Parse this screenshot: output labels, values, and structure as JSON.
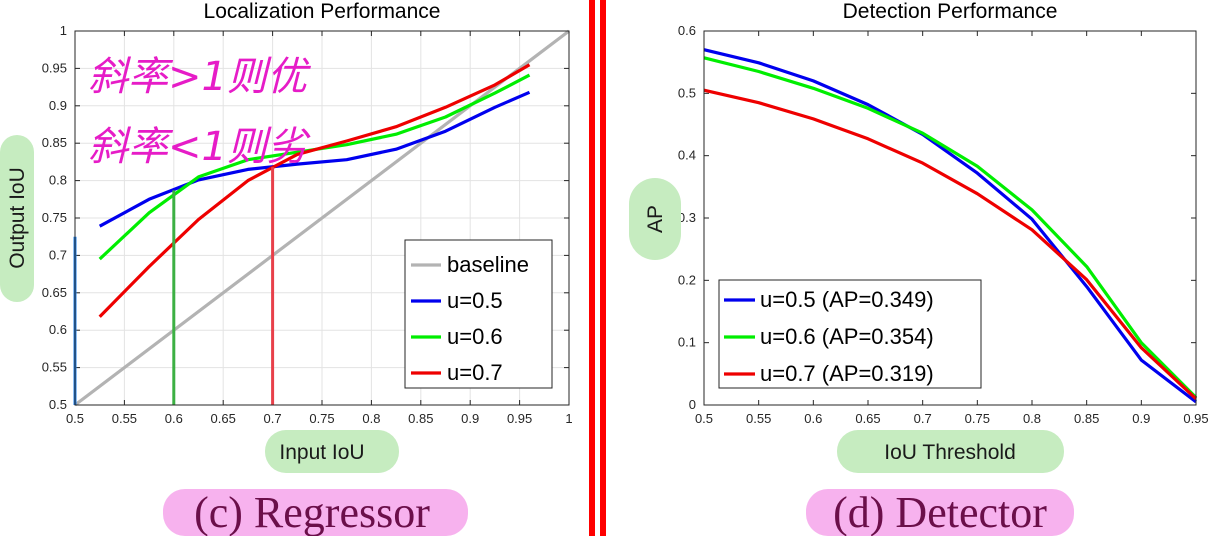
{
  "colors": {
    "baseline": "#b3b3b3",
    "u05": "#0000ee",
    "u06": "#00ee00",
    "u07": "#ee0000",
    "label_bg": "#c6ecc0",
    "caption_bg": "#f7b2ee",
    "divider": "#ff0000",
    "annotation": "#e61cc7",
    "marker_blue": "#1f7fe8",
    "marker_green": "#3cb043",
    "marker_red": "#e8404a"
  },
  "annotations": {
    "line1": "斜率>1则优",
    "line2": "斜率<1则劣"
  },
  "chart_data": [
    {
      "type": "line",
      "title": "Localization Performance",
      "caption": "(c) Regressor",
      "xlabel": "Input IoU",
      "ylabel": "Output IoU",
      "xlim": [
        0.5,
        1
      ],
      "ylim": [
        0.5,
        1
      ],
      "xticks": [
        "0.5",
        "0.55",
        "0.6",
        "0.65",
        "0.7",
        "0.75",
        "0.8",
        "0.85",
        "0.9",
        "0.95",
        "1"
      ],
      "yticks": [
        "0.5",
        "0.55",
        "0.6",
        "0.65",
        "0.7",
        "0.75",
        "0.8",
        "0.85",
        "0.9",
        "0.95",
        "1"
      ],
      "grid": true,
      "legend": "bottom-right",
      "series": [
        {
          "name": "baseline",
          "key": "baseline",
          "x": [
            0.5,
            1.0
          ],
          "y": [
            0.5,
            1.0
          ]
        },
        {
          "name": "u=0.5",
          "key": "u05",
          "x": [
            0.525,
            0.575,
            0.625,
            0.675,
            0.725,
            0.775,
            0.825,
            0.875,
            0.925,
            0.96
          ],
          "y": [
            0.739,
            0.775,
            0.801,
            0.815,
            0.822,
            0.828,
            0.842,
            0.866,
            0.898,
            0.918
          ]
        },
        {
          "name": "u=0.6",
          "key": "u06",
          "x": [
            0.525,
            0.575,
            0.625,
            0.675,
            0.725,
            0.775,
            0.825,
            0.875,
            0.925,
            0.96
          ],
          "y": [
            0.695,
            0.757,
            0.805,
            0.828,
            0.838,
            0.848,
            0.862,
            0.885,
            0.917,
            0.941
          ]
        },
        {
          "name": "u=0.7",
          "key": "u07",
          "x": [
            0.525,
            0.575,
            0.625,
            0.675,
            0.725,
            0.775,
            0.825,
            0.875,
            0.925,
            0.96
          ],
          "y": [
            0.618,
            0.685,
            0.748,
            0.8,
            0.835,
            0.853,
            0.872,
            0.898,
            0.928,
            0.955
          ]
        }
      ],
      "markers": [
        {
          "key": "marker_blue",
          "x": 0.5,
          "y": [
            0.5,
            0.725
          ]
        },
        {
          "key": "marker_green",
          "x": 0.6,
          "y": [
            0.5,
            0.787
          ]
        },
        {
          "key": "marker_red",
          "x": 0.7,
          "y": [
            0.5,
            0.818
          ]
        }
      ]
    },
    {
      "type": "line",
      "title": "Detection Performance",
      "caption": "(d) Detector",
      "xlabel": "IoU Threshold",
      "ylabel": "AP",
      "xlim": [
        0.5,
        0.95
      ],
      "ylim": [
        0,
        0.6
      ],
      "xticks": [
        "0.5",
        "0.55",
        "0.6",
        "0.65",
        "0.7",
        "0.75",
        "0.8",
        "0.85",
        "0.9",
        "0.95"
      ],
      "yticks": [
        "0",
        "0.1",
        "0.2",
        "0.3",
        "0.4",
        "0.5",
        "0.6"
      ],
      "grid": false,
      "legend": "bottom-left",
      "series": [
        {
          "name": "u=0.5 (AP=0.349)",
          "key": "u05",
          "x": [
            0.5,
            0.55,
            0.6,
            0.65,
            0.7,
            0.75,
            0.8,
            0.85,
            0.9,
            0.95
          ],
          "y": [
            0.57,
            0.549,
            0.52,
            0.482,
            0.434,
            0.372,
            0.298,
            0.19,
            0.072,
            0.005
          ]
        },
        {
          "name": "u=0.6 (AP=0.354)",
          "key": "u06",
          "x": [
            0.5,
            0.55,
            0.6,
            0.65,
            0.7,
            0.75,
            0.8,
            0.85,
            0.9,
            0.95
          ],
          "y": [
            0.557,
            0.535,
            0.508,
            0.476,
            0.436,
            0.383,
            0.313,
            0.222,
            0.1,
            0.012
          ]
        },
        {
          "name": "u=0.7 (AP=0.319)",
          "key": "u07",
          "x": [
            0.5,
            0.55,
            0.6,
            0.65,
            0.7,
            0.75,
            0.8,
            0.85,
            0.9,
            0.95
          ],
          "y": [
            0.505,
            0.485,
            0.459,
            0.427,
            0.388,
            0.339,
            0.281,
            0.201,
            0.092,
            0.01
          ]
        }
      ]
    }
  ]
}
